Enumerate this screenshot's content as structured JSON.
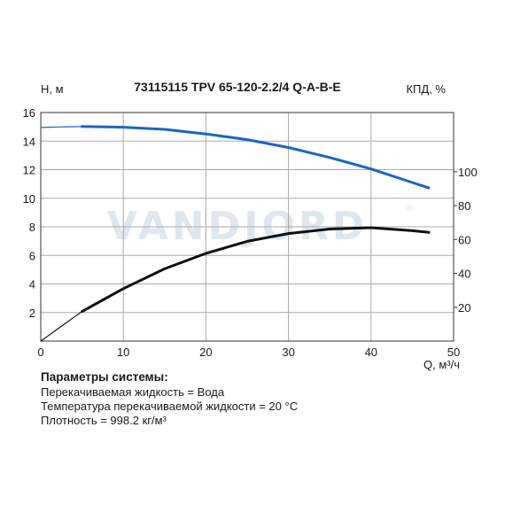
{
  "title": "73115115 TPV 65-120-2.2/4 Q-A-B-E",
  "watermark": "VANDJORD",
  "watermark_mark": "®",
  "chart_data": {
    "type": "line",
    "title": "73115115 TPV 65-120-2.2/4 Q-A-B-E",
    "xlabel": "Q, м³/ч",
    "ylabel": "H, м",
    "y2label": "КПД, %",
    "xlim": [
      0,
      50
    ],
    "ylim": [
      0,
      16
    ],
    "y2lim": [
      0,
      135
    ],
    "x_ticks": [
      0,
      10,
      20,
      30,
      40,
      50
    ],
    "y_ticks": [
      2,
      4,
      6,
      8,
      10,
      12,
      14,
      16
    ],
    "y2_ticks": [
      20,
      40,
      60,
      80,
      100
    ],
    "grid": true,
    "series": [
      {
        "axis": "left",
        "color": "#1a64c8",
        "x": [
          0,
          1,
          2,
          3,
          4,
          5,
          10,
          15,
          20,
          25,
          30,
          35,
          40,
          45,
          47
        ],
        "y": [
          14.95,
          14.97,
          14.99,
          15.0,
          15.01,
          15.02,
          14.97,
          14.82,
          14.5,
          14.1,
          13.55,
          12.85,
          12.05,
          11.1,
          10.72
        ]
      },
      {
        "axis": "right",
        "color": "#111111",
        "x": [
          0,
          1,
          2,
          3,
          4,
          5,
          10,
          15,
          20,
          25,
          30,
          35,
          40,
          45,
          47
        ],
        "y": [
          0,
          3.5,
          7,
          10.5,
          14,
          17.5,
          31,
          42.7,
          51.8,
          58.9,
          63.5,
          66.2,
          67.0,
          65.2,
          64.2
        ]
      }
    ]
  },
  "params": {
    "heading": "Параметры системы:",
    "lines": [
      "Перекачиваемая жидкость = Вода",
      "Температура перекачиваемой жидкости = 20 °C",
      "Плотность = 998.2 кг/м³"
    ]
  }
}
